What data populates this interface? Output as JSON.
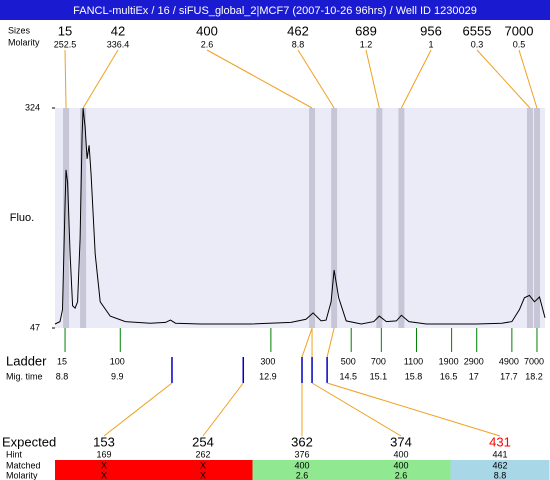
{
  "header": {
    "title": "FANCL-multiEx / 16 / siFUS_global_2|MCF7 (2007-10-26 96hrs) / Well ID 1230029"
  },
  "peaks": {
    "labels": [
      "Sizes",
      "Molarity"
    ],
    "sizes": [
      15,
      42,
      400,
      462,
      689,
      956,
      6555,
      7000
    ],
    "molarity": [
      252.5,
      336.4,
      2.6,
      8.8,
      1.2,
      1,
      0.3,
      0.5
    ],
    "time": [
      8.82,
      9.16,
      13.72,
      14.16,
      15.06,
      15.5,
      18.06,
      18.2
    ]
  },
  "plot": {
    "ylabel": "Fluo.",
    "ylim": [
      47,
      324
    ],
    "yticks": [
      47,
      324
    ],
    "xlim": [
      8.6,
      18.36
    ],
    "trace": {
      "x": [
        8.6,
        8.7,
        8.75,
        8.8,
        8.82,
        8.85,
        8.9,
        8.95,
        9.0,
        9.05,
        9.1,
        9.14,
        9.16,
        9.2,
        9.24,
        9.28,
        9.32,
        9.4,
        9.5,
        9.7,
        10.0,
        10.5,
        10.8,
        10.9,
        11.0,
        11.5,
        12.5,
        13.3,
        13.6,
        13.74,
        13.9,
        14.0,
        14.1,
        14.16,
        14.25,
        14.4,
        14.7,
        14.95,
        15.06,
        15.2,
        15.4,
        15.5,
        15.65,
        16.0,
        17.0,
        17.5,
        17.7,
        17.85,
        17.95,
        18.05,
        18.15,
        18.25,
        18.36
      ],
      "y": [
        52,
        55,
        70,
        200,
        246,
        230,
        140,
        75,
        72,
        80,
        160,
        290,
        324,
        300,
        260,
        277,
        240,
        140,
        80,
        62,
        55,
        53,
        54,
        57,
        53,
        52,
        52,
        54,
        58,
        66,
        56,
        57,
        80,
        120,
        85,
        56,
        52,
        55,
        62,
        55,
        56,
        63,
        55,
        52,
        52,
        53,
        55,
        70,
        85,
        88,
        80,
        86,
        60
      ]
    }
  },
  "ladder": {
    "labels": [
      "Ladder",
      "Mig. time"
    ],
    "sizes": [
      15,
      100,
      300,
      500,
      700,
      1100,
      1900,
      2900,
      4900,
      7000
    ],
    "mig_time": [
      8.8,
      9.9,
      12.9,
      14.5,
      15.1,
      15.8,
      16.5,
      17,
      17.7,
      18.2
    ]
  },
  "expected": {
    "labels": [
      "Expected",
      "Hint",
      "Matched",
      "Molarity"
    ],
    "expected": [
      153,
      254,
      362,
      374,
      431
    ],
    "hint": [
      169,
      262,
      376,
      400,
      441
    ],
    "matched": [
      "X",
      "X",
      "400",
      "400",
      "462"
    ],
    "molarity": [
      "X",
      "X",
      "2.6",
      "2.6",
      "8.8"
    ],
    "time": [
      10.93,
      12.35,
      13.52,
      13.72,
      14.02
    ],
    "colors": [
      "#ff0000",
      "#ff0000",
      "#90e890",
      "#90e890",
      "#a8d8e8"
    ],
    "text_colors": [
      "#000000",
      "#000000",
      "#000000",
      "#000000",
      "#ff0000"
    ]
  }
}
